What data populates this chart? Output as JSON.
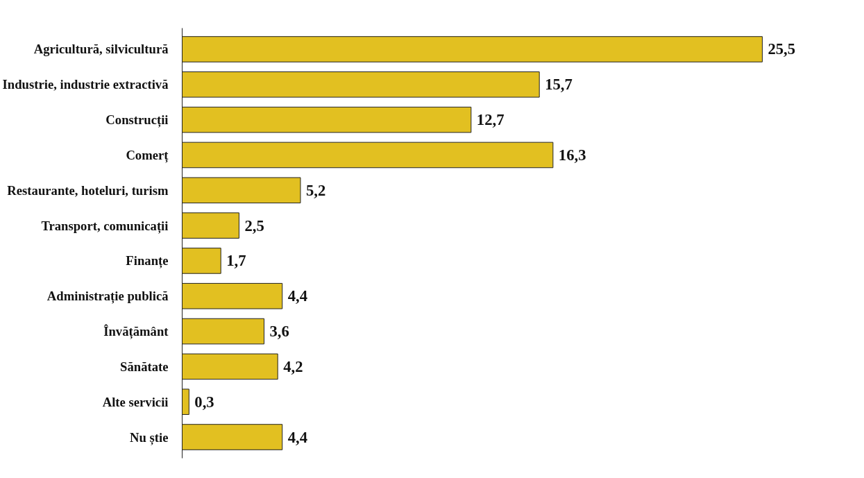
{
  "chart_data": {
    "type": "bar",
    "orientation": "horizontal",
    "categories": [
      "Agricultură, silvicultură",
      "Industrie, industrie extractivă",
      "Construcții",
      "Comerț",
      "Restaurante, hoteluri, turism",
      "Transport, comunicații",
      "Finanțe",
      "Administrație publică",
      "Învățământ",
      "Sănătate",
      "Alte servicii",
      "Nu știe"
    ],
    "values": [
      25.5,
      15.7,
      12.7,
      16.3,
      5.2,
      2.5,
      1.7,
      4.4,
      3.6,
      4.2,
      0.3,
      4.4
    ],
    "value_labels": [
      "25,5",
      "15,7",
      "12,7",
      "16,3",
      "5,2",
      "2,5",
      "1,7",
      "4,4",
      "3,6",
      "4,2",
      "0,3",
      "4,4"
    ],
    "color": "#e2c021",
    "tick_labels": "y",
    "grid": false
  }
}
